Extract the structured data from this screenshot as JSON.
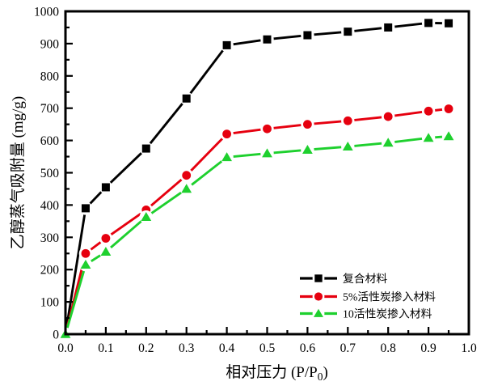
{
  "figure": {
    "background": "#ffffff",
    "frame_color": "#000000"
  },
  "chart_data": {
    "type": "line",
    "title": "",
    "xlabel_parts": {
      "main": "相对压力 (P/P",
      "sub": "0",
      "close": ")"
    },
    "xlabel": "相对压力 (P/P0)",
    "ylabel": "乙醇蒸气吸附量 (mg/g)",
    "xlim": [
      0,
      1.0
    ],
    "ylim": [
      0,
      1000
    ],
    "x_tick_labels": [
      "0.0",
      "0.1",
      "0.2",
      "0.3",
      "0.4",
      "0.5",
      "0.6",
      "0.7",
      "0.8",
      "0.9",
      "1.0"
    ],
    "x_tick_values": [
      0,
      0.1,
      0.2,
      0.3,
      0.4,
      0.5,
      0.6,
      0.7,
      0.8,
      0.9,
      1.0
    ],
    "x_minor_tick_values": [
      0.05,
      0.15,
      0.25,
      0.35,
      0.45,
      0.55,
      0.65,
      0.75,
      0.85,
      0.95
    ],
    "y_tick_values": [
      0,
      100,
      200,
      300,
      400,
      500,
      600,
      700,
      800,
      900,
      1000
    ],
    "y_minor_tick_values": [
      50,
      150,
      250,
      350,
      450,
      550,
      650,
      750,
      850,
      950
    ],
    "grid": false,
    "legend_position": "inside-bottom-right",
    "x": [
      0,
      0.05,
      0.1,
      0.2,
      0.3,
      0.4,
      0.5,
      0.6,
      0.7,
      0.8,
      0.9,
      0.95
    ],
    "series": [
      {
        "key": "composite",
        "name": "复合材料",
        "color": "#000000",
        "marker": "square",
        "values": [
          0,
          390,
          455,
          575,
          730,
          895,
          913,
          926,
          937,
          950,
          964,
          963
        ]
      },
      {
        "key": "ac5",
        "name": "5%活性炭掺入材料",
        "color": "#e6000f",
        "marker": "circle",
        "values": [
          0,
          250,
          297,
          385,
          492,
          620,
          636,
          650,
          661,
          674,
          691,
          698
        ]
      },
      {
        "key": "ac10",
        "name": "10活性炭掺入材料",
        "color": "#1ed02e",
        "marker": "triangle",
        "values": [
          0,
          215,
          255,
          363,
          450,
          548,
          560,
          571,
          581,
          593,
          608,
          613
        ]
      }
    ]
  }
}
